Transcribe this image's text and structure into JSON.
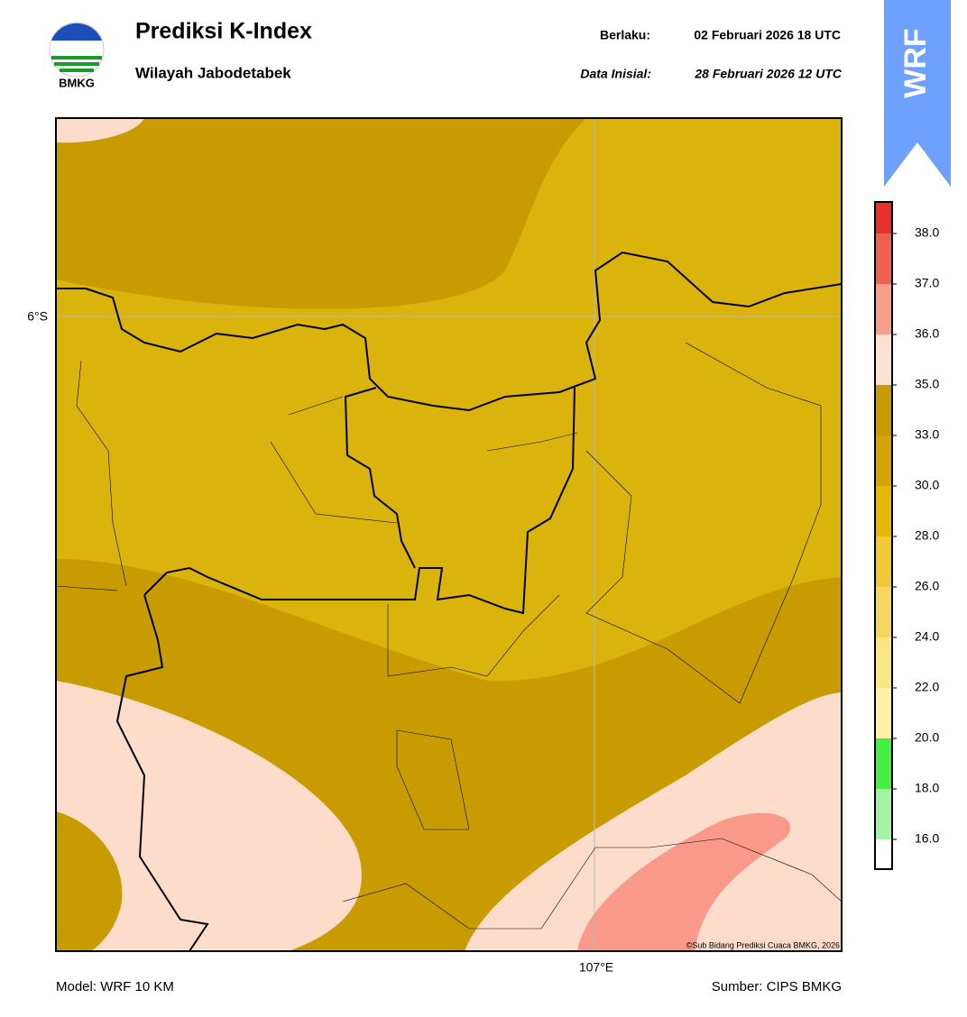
{
  "header": {
    "title": "Prediksi K-Index",
    "subtitle": "Wilayah Jabodetabek",
    "logo_text": "BMKG",
    "valid_label": "Berlaku:",
    "valid_time": "02 Februari 2026 18 UTC",
    "init_label": "Data Inisial:",
    "init_time": "28 Februari 2026 12 UTC",
    "badge": "WRF"
  },
  "map": {
    "lat_label": "6°S",
    "lon_label": "107°E",
    "copyright": "©Sub Bidang Prediksi Cuaca BMKG, 2026"
  },
  "colorbar": {
    "colors": [
      "#e6302a",
      "#f0604e",
      "#f89e8c",
      "#fde0d6",
      "#c89c00",
      "#d4a400",
      "#e6b800",
      "#f0c838",
      "#f6d660",
      "#fae684",
      "#fff2a8",
      "#44ee44",
      "#a4f2a4",
      "#ffffff"
    ],
    "ticks": [
      "38.0",
      "37.0",
      "36.0",
      "35.0",
      "33.0",
      "30.0",
      "28.0",
      "26.0",
      "24.0",
      "22.0",
      "20.0",
      "18.0",
      "16.0"
    ]
  },
  "footer": {
    "model": "Model: WRF 10 KM",
    "source": "Sumber: CIPS BMKG"
  }
}
